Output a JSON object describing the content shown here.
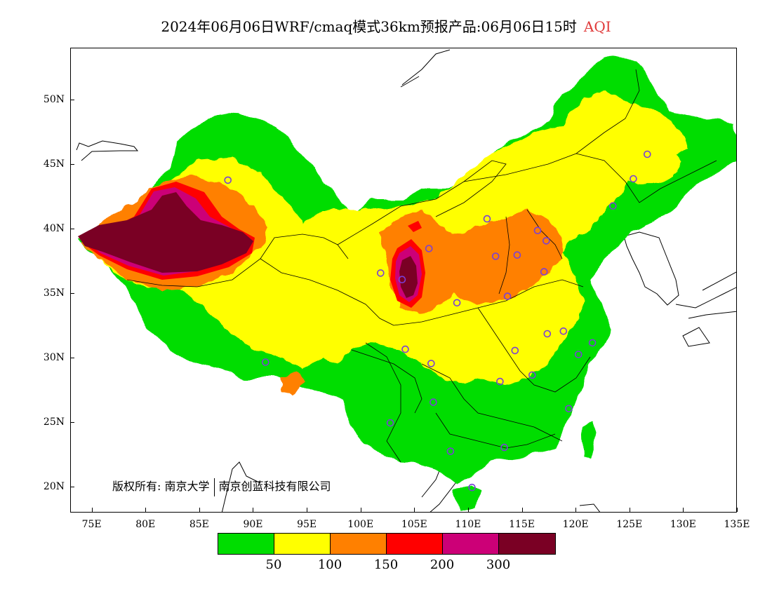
{
  "title": {
    "main": "2024年06月06日WRF/cmaq模式36km预报产品:06月06日15时",
    "index": "AQI"
  },
  "copyright": {
    "prefix": "版权所有:",
    "org1": "南京大学",
    "org2": "南京创蓝科技有限公司"
  },
  "axes": {
    "lon_ticks": [
      "75E",
      "80E",
      "85E",
      "90E",
      "95E",
      "100E",
      "105E",
      "110E",
      "115E",
      "120E",
      "125E",
      "130E",
      "135E"
    ],
    "lat_ticks": [
      "50N",
      "45N",
      "40N",
      "35N",
      "30N",
      "25N",
      "20N"
    ],
    "lon_range": [
      73,
      135
    ],
    "lat_range": [
      18,
      54
    ]
  },
  "legend": {
    "colors": [
      "#00dd00",
      "#ffff00",
      "#ff8000",
      "#ff0000",
      "#cc0077",
      "#7a0024"
    ],
    "labels": [
      "50",
      "100",
      "150",
      "200",
      "300"
    ]
  },
  "colors": {
    "good": "#00dd00",
    "moderate": "#ffff00",
    "usg": "#ff8000",
    "unhealthy": "#ff0000",
    "very_unhealthy": "#cc0077",
    "hazardous": "#7a0024",
    "station_marker": "#7a3fd6"
  },
  "stations": [
    {
      "lon": 87.6,
      "lat": 43.8
    },
    {
      "lon": 91.1,
      "lat": 29.7
    },
    {
      "lon": 101.8,
      "lat": 36.6
    },
    {
      "lon": 103.8,
      "lat": 36.1
    },
    {
      "lon": 106.3,
      "lat": 38.5
    },
    {
      "lon": 111.7,
      "lat": 40.8
    },
    {
      "lon": 112.5,
      "lat": 37.9
    },
    {
      "lon": 114.5,
      "lat": 38.0
    },
    {
      "lon": 116.4,
      "lat": 39.9
    },
    {
      "lon": 117.2,
      "lat": 39.1
    },
    {
      "lon": 117.0,
      "lat": 36.7
    },
    {
      "lon": 113.6,
      "lat": 34.8
    },
    {
      "lon": 108.9,
      "lat": 34.3
    },
    {
      "lon": 104.1,
      "lat": 30.7
    },
    {
      "lon": 106.5,
      "lat": 29.6
    },
    {
      "lon": 114.3,
      "lat": 30.6
    },
    {
      "lon": 117.3,
      "lat": 31.9
    },
    {
      "lon": 118.8,
      "lat": 32.1
    },
    {
      "lon": 120.2,
      "lat": 30.3
    },
    {
      "lon": 121.5,
      "lat": 31.2
    },
    {
      "lon": 115.9,
      "lat": 28.7
    },
    {
      "lon": 112.9,
      "lat": 28.2
    },
    {
      "lon": 106.7,
      "lat": 26.6
    },
    {
      "lon": 102.7,
      "lat": 25.0
    },
    {
      "lon": 108.3,
      "lat": 22.8
    },
    {
      "lon": 113.3,
      "lat": 23.1
    },
    {
      "lon": 119.3,
      "lat": 26.1
    },
    {
      "lon": 110.3,
      "lat": 20.0
    },
    {
      "lon": 123.4,
      "lat": 41.8
    },
    {
      "lon": 125.3,
      "lat": 43.9
    },
    {
      "lon": 126.6,
      "lat": 45.8
    }
  ]
}
